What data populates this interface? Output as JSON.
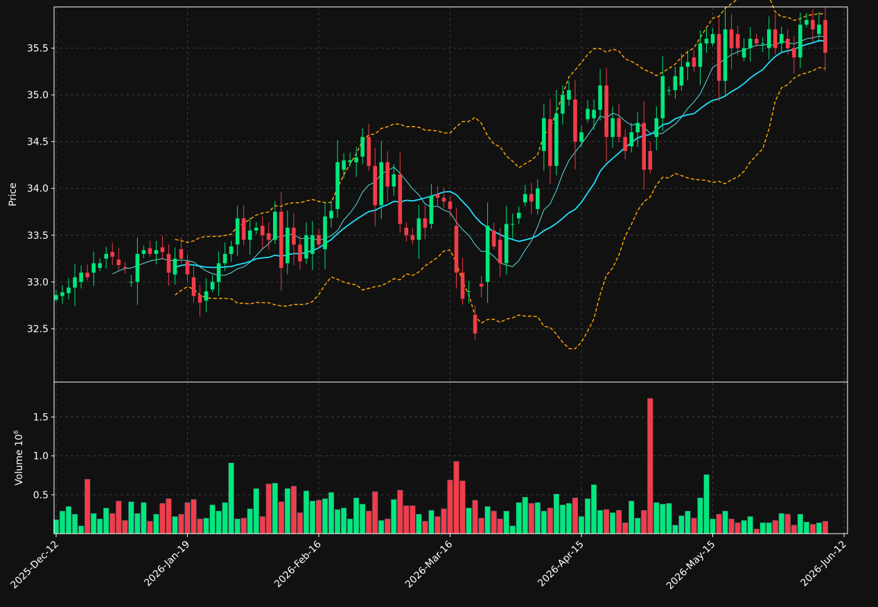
{
  "chart_data": {
    "type": "candlestick",
    "price_panel": {
      "ylabel": "Price",
      "ylim": [
        31.93,
        35.94
      ],
      "yticks": [
        32.5,
        33.0,
        33.5,
        34.0,
        34.5,
        35.0,
        35.5
      ],
      "ytick_labels": [
        "32.5",
        "33.0",
        "33.5",
        "34.0",
        "34.5",
        "35.0",
        "35.5"
      ],
      "overlays": [
        "sma-fast",
        "sma-slow",
        "bollinger-upper",
        "bollinger-lower"
      ]
    },
    "volume_panel": {
      "ylabel": "Volume",
      "ylabel_exponent": "10",
      "ylabel_power": "6",
      "ylim": [
        0,
        1.95
      ],
      "yticks": [
        0.5,
        1.0,
        1.5
      ],
      "ytick_labels": [
        "0.5",
        "1.0",
        "1.5"
      ]
    },
    "x_tick_labels": [
      "2025-Dec-12",
      "2026-Jan-19",
      "2026-Feb-16",
      "2026-Mar-16",
      "2026-Apr-15",
      "2026-May-15",
      "2026-Jun-12"
    ],
    "x_tick_sessions": [
      0,
      21,
      42,
      63,
      84,
      105,
      126
    ],
    "grid": true,
    "colors": {
      "background": "#111111",
      "up": "#00e87c",
      "down": "#f23c48",
      "sma_fast": "#5de6e6",
      "sma_slow": "#1fe3ff",
      "bollinger": "#ffa500",
      "grid": "#444444",
      "axis": "#ffffff"
    },
    "closes": [
      32.86,
      32.89,
      32.94,
      33.05,
      33.1,
      33.05,
      33.2,
      33.2,
      33.3,
      33.27,
      33.18,
      33.15,
      33.0,
      33.3,
      33.34,
      33.3,
      33.34,
      33.32,
      33.1,
      33.25,
      33.25,
      33.08,
      32.85,
      32.78,
      32.9,
      33.0,
      33.2,
      33.3,
      33.38,
      33.68,
      33.45,
      33.55,
      33.58,
      33.5,
      33.45,
      33.75,
      33.15,
      33.58,
      33.4,
      33.22,
      33.5,
      33.5,
      33.4,
      33.7,
      33.76,
      34.28,
      34.3,
      34.3,
      34.33,
      34.55,
      34.24,
      33.82,
      34.28,
      34.02,
      34.15,
      33.62,
      33.5,
      33.45,
      33.68,
      33.58,
      33.92,
      33.9,
      33.86,
      33.78,
      33.1,
      32.82,
      32.9,
      32.45,
      32.95,
      33.6,
      33.38,
      33.2,
      33.62,
      33.62,
      33.74,
      33.94,
      33.86,
      34.0,
      34.75,
      34.24,
      34.8,
      35.0,
      35.05,
      34.5,
      34.6,
      34.85,
      34.84,
      35.1,
      34.55,
      34.75,
      34.55,
      34.4,
      34.6,
      34.7,
      34.2,
      34.2,
      34.75,
      35.2,
      35.05,
      35.2,
      35.3,
      35.35,
      35.3,
      35.55,
      35.6,
      35.65,
      35.15,
      35.7,
      35.5,
      35.5,
      35.5,
      35.6,
      35.55,
      35.55,
      35.7,
      35.5,
      35.65,
      35.5,
      35.4,
      35.75,
      35.8,
      35.7,
      35.75,
      35.45
    ],
    "opens": [
      32.81,
      32.85,
      32.88,
      32.94,
      33.0,
      33.1,
      33.1,
      33.15,
      33.25,
      33.32,
      33.24,
      33.16,
      33.0,
      33.0,
      33.3,
      33.36,
      33.3,
      33.37,
      33.3,
      33.08,
      33.35,
      33.22,
      33.05,
      32.86,
      32.8,
      32.92,
      33.0,
      33.2,
      33.3,
      33.4,
      33.68,
      33.45,
      33.55,
      33.6,
      33.52,
      33.45,
      33.75,
      33.2,
      33.58,
      33.4,
      33.25,
      33.3,
      33.5,
      33.35,
      33.68,
      33.78,
      34.2,
      34.28,
      34.28,
      34.34,
      34.55,
      34.24,
      33.82,
      34.28,
      34.02,
      34.15,
      33.58,
      33.5,
      33.45,
      33.68,
      33.62,
      33.94,
      33.9,
      33.86,
      33.6,
      33.1,
      32.9,
      32.65,
      32.98,
      33.0,
      33.55,
      33.45,
      33.2,
      33.62,
      33.68,
      33.85,
      33.94,
      33.78,
      34.4,
      34.74,
      34.24,
      34.8,
      34.95,
      34.95,
      34.5,
      34.74,
      34.75,
      34.84,
      35.1,
      34.55,
      34.75,
      34.55,
      34.45,
      34.6,
      34.7,
      34.4,
      34.55,
      34.75,
      35.05,
      35.05,
      35.1,
      35.3,
      35.4,
      35.3,
      35.55,
      35.55,
      35.65,
      35.15,
      35.7,
      35.65,
      35.4,
      35.5,
      35.6,
      35.55,
      35.5,
      35.7,
      35.55,
      35.6,
      35.5,
      35.4,
      35.75,
      35.8,
      35.65,
      35.8
    ],
    "volumes_millions": [
      0.18,
      0.29,
      0.35,
      0.25,
      0.1,
      0.7,
      0.26,
      0.19,
      0.33,
      0.26,
      0.42,
      0.17,
      0.41,
      0.26,
      0.4,
      0.16,
      0.25,
      0.39,
      0.45,
      0.22,
      0.25,
      0.4,
      0.44,
      0.19,
      0.2,
      0.37,
      0.29,
      0.4,
      0.91,
      0.19,
      0.2,
      0.32,
      0.58,
      0.22,
      0.64,
      0.65,
      0.41,
      0.58,
      0.61,
      0.27,
      0.55,
      0.42,
      0.43,
      0.45,
      0.53,
      0.31,
      0.33,
      0.19,
      0.46,
      0.38,
      0.29,
      0.54,
      0.17,
      0.19,
      0.44,
      0.56,
      0.36,
      0.36,
      0.25,
      0.16,
      0.3,
      0.22,
      0.32,
      0.69,
      0.93,
      0.68,
      0.33,
      0.43,
      0.2,
      0.35,
      0.29,
      0.19,
      0.29,
      0.1,
      0.4,
      0.47,
      0.39,
      0.4,
      0.29,
      0.33,
      0.51,
      0.37,
      0.39,
      0.46,
      0.22,
      0.45,
      0.63,
      0.3,
      0.31,
      0.27,
      0.3,
      0.14,
      0.42,
      0.2,
      0.3,
      1.74,
      0.4,
      0.38,
      0.39,
      0.11,
      0.23,
      0.29,
      0.2,
      0.46,
      0.76,
      0.19,
      0.25,
      0.29,
      0.19,
      0.14,
      0.17,
      0.22,
      0.06,
      0.14,
      0.14,
      0.17,
      0.26,
      0.25,
      0.11,
      0.25,
      0.15,
      0.12,
      0.14,
      0.16
    ]
  }
}
